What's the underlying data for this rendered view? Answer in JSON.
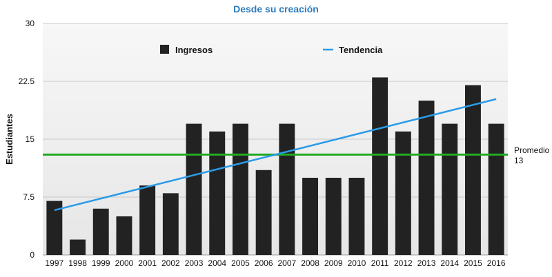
{
  "chart_data": {
    "type": "bar",
    "title": "Desde su creación",
    "ylabel": "Estudiantes",
    "xlabel": "",
    "ylim": [
      0,
      30
    ],
    "yticks": [
      "0",
      "7.5",
      "15",
      "22.5",
      "30"
    ],
    "yticks_values": [
      0,
      7.5,
      15,
      22.5,
      30
    ],
    "grid": true,
    "legend_position": "top",
    "categories": [
      "1997",
      "1998",
      "1999",
      "2000",
      "2001",
      "2002",
      "2003",
      "2004",
      "2005",
      "2006",
      "2007",
      "2008",
      "2009",
      "2010",
      "2011",
      "2012",
      "2013",
      "2014",
      "2015",
      "2016"
    ],
    "series": [
      {
        "name": "Ingresos",
        "type": "bar",
        "color": "#222222",
        "values": [
          7,
          2,
          6,
          5,
          9,
          8,
          17,
          16,
          17,
          11,
          17,
          10,
          10,
          10,
          23,
          16,
          20,
          17,
          22,
          17
        ]
      }
    ],
    "trendline": {
      "name": "Tendencia",
      "color": "#2b9be8",
      "start": {
        "x": "1997",
        "y": 5.8
      },
      "end": {
        "x": "2016",
        "y": 20.2
      }
    },
    "average": {
      "label": "Promedio",
      "value": 13,
      "value_text": "13",
      "color": "#22aa22"
    },
    "colors": {
      "title": "#2b7bbf",
      "plot_background": "#efefef",
      "gridline": "#c8c8c8"
    }
  }
}
